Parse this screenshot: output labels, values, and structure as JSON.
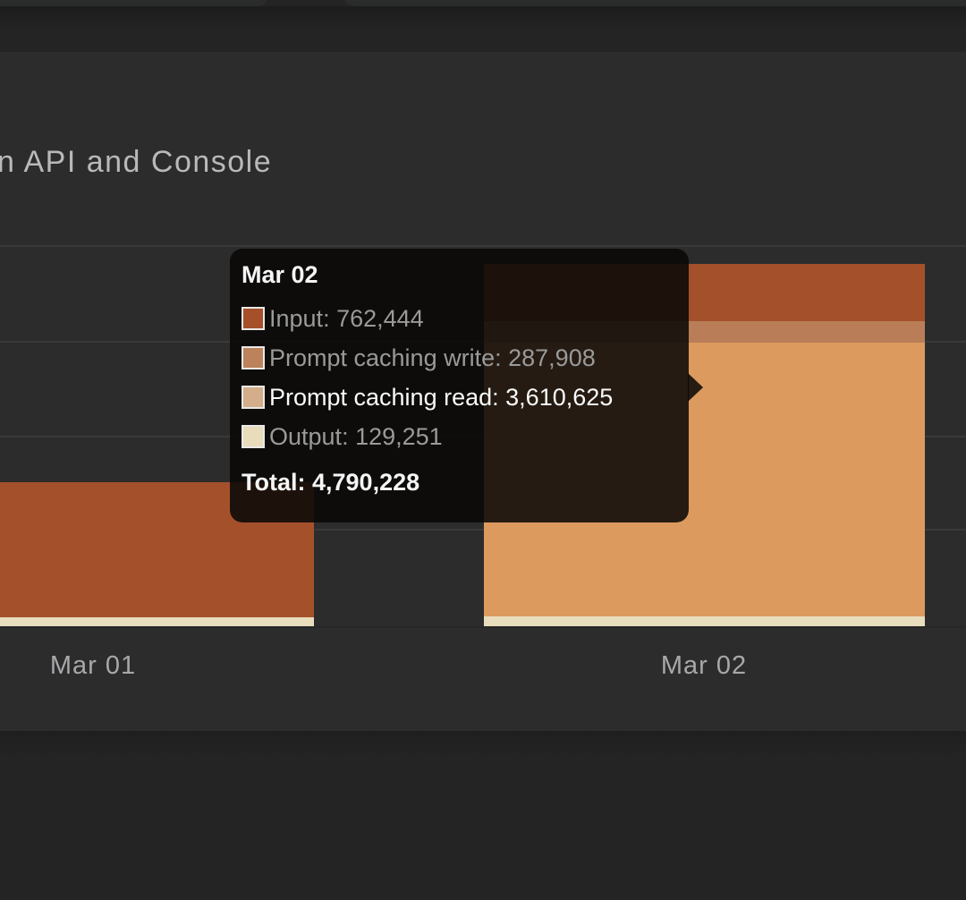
{
  "page": {
    "background": "#242425",
    "card_background": "#2c2c2d",
    "gridline_color": "#39393a"
  },
  "header": {
    "title_visible": "n API and Console"
  },
  "chart_data": {
    "type": "bar",
    "stacked": true,
    "title": "n API and Console",
    "categories": [
      "Mar 01",
      "Mar 02"
    ],
    "series": [
      {
        "name": "Input",
        "color": "#a4512b",
        "values": [
          1780000,
          762444
        ]
      },
      {
        "name": "Prompt caching write",
        "color": "#b97e58",
        "values": [
          0,
          287908
        ]
      },
      {
        "name": "Prompt caching read",
        "color": "#dd9a5e",
        "values": [
          0,
          3610625
        ]
      },
      {
        "name": "Output",
        "color": "#e8ddbd",
        "values": [
          122000,
          129251
        ]
      }
    ],
    "stack_order_bottom_to_top": [
      "Output",
      "Prompt caching read",
      "Prompt caching write",
      "Input"
    ],
    "ylim": [
      0,
      5000000
    ],
    "y_gridline_interval": 1250000,
    "grid": true,
    "note_mar01_values_estimated": true
  },
  "tooltip": {
    "title": "Mar 02",
    "rows": [
      {
        "label": "Input",
        "value": "762,444",
        "swatch": "#a5502a",
        "highlight": false
      },
      {
        "label": "Prompt caching write",
        "value": "287,908",
        "swatch": "#bc825c",
        "highlight": false
      },
      {
        "label": "Prompt caching read",
        "value": "3,610,625",
        "swatch": "#d4ad8a",
        "highlight": true
      },
      {
        "label": "Output",
        "value": "129,251",
        "swatch": "#e9dcba",
        "highlight": false
      }
    ],
    "total_label": "Total",
    "total_value": "4,790,228"
  }
}
